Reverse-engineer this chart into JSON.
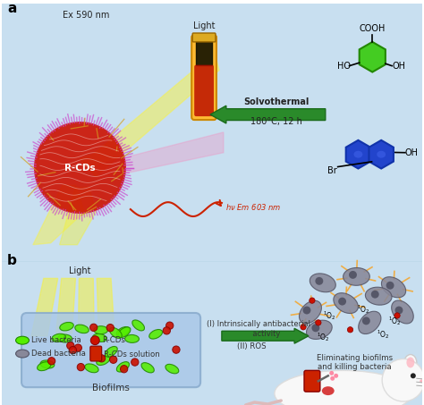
{
  "bg_color": "#c8dff0",
  "panel_a": "a",
  "panel_b": "b",
  "ex_text": "Ex 590 nm",
  "rcds_text": "R-CDs",
  "light_text": "Light",
  "hv_text": "hv Em 603 nm",
  "solvothermal_text": "Solvothermal",
  "temp_text": "180°C, 12 h",
  "cooh_text": "COOH",
  "ho_text": "HO",
  "oh_text": "OH",
  "br_text": "Br",
  "biofilms_text": "Biofilms",
  "light_b_text": "Light",
  "antibacterial_text1": "(I) Intrinsically antibacterial",
  "antibacterial_text2": "       activity",
  "ros_text": "(II) ROS",
  "eliminating_text": "Eliminating biofilms\nand killing bacteria",
  "live_text": "Live bacteria",
  "dead_text": "Dead bacteria",
  "rcds_leg_text": "R-CDs",
  "sol_text": "R-CDs solution",
  "arrow_color": "#2a8a2a",
  "green_hex": "#44dd00",
  "blue_hex": "#1a3aaa",
  "red_hex": "#cc1100",
  "tube_gold": "#ffbb33",
  "tube_dark": "#221100"
}
